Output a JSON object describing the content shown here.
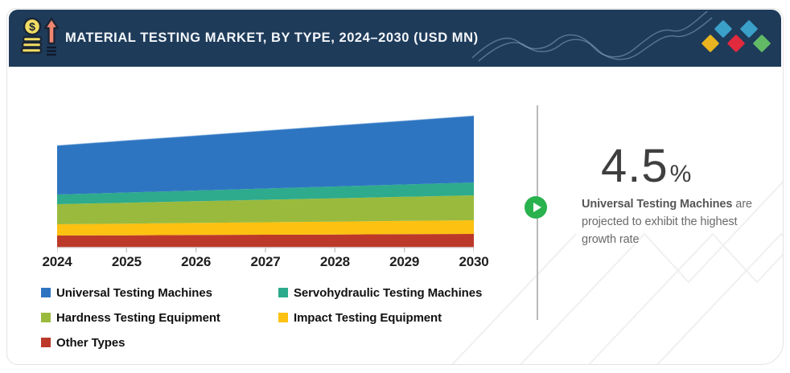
{
  "header": {
    "title": "MATERIAL TESTING MARKET, BY TYPE, 2024–2030 (USD MN)",
    "background_color": "#1e3b5a",
    "icon": "money-growth-icon",
    "logo_diamond_colors": [
      "#3aa0c8",
      "#3aa0c8",
      "#e9b41f",
      "#e22a3e",
      "#62ba67"
    ]
  },
  "chart_data": {
    "type": "area",
    "stacked": true,
    "title": "",
    "xlabel": "",
    "ylabel": "",
    "x": [
      "2024",
      "2025",
      "2026",
      "2027",
      "2028",
      "2029",
      "2030"
    ],
    "y_axis_visible": false,
    "grid": false,
    "legend_position": "bottom",
    "note": "no y-axis scale shown; values estimated from band proportions, bottom-to-top stacking is reverse of series order",
    "series": [
      {
        "name": "Universal Testing Machines",
        "color": "#2e75c1",
        "values": [
          61,
          64.7,
          68.3,
          72,
          75.7,
          79.3,
          83
        ]
      },
      {
        "name": "Servohydraulic Testing Machines",
        "color": "#2dab8c",
        "values": [
          12,
          12.7,
          13.3,
          14,
          14.7,
          15.3,
          16
        ]
      },
      {
        "name": "Hardness Testing Equipment",
        "color": "#9aba3d",
        "values": [
          25,
          26,
          27,
          28,
          29,
          30,
          31
        ]
      },
      {
        "name": "Impact Testing Equipment",
        "color": "#fcc111",
        "values": [
          14,
          14.5,
          15,
          15.5,
          16,
          16.5,
          17
        ]
      },
      {
        "name": "Other Types",
        "color": "#bc392a",
        "values": [
          15,
          15.3,
          15.7,
          16,
          16.3,
          16.7,
          17
        ]
      }
    ]
  },
  "highlight": {
    "value": "4.5",
    "unit": "%",
    "bold_text": "Universal Testing Machines",
    "text_rest": " are projected to exhibit the highest growth rate",
    "accent_color": "#29b24e"
  }
}
